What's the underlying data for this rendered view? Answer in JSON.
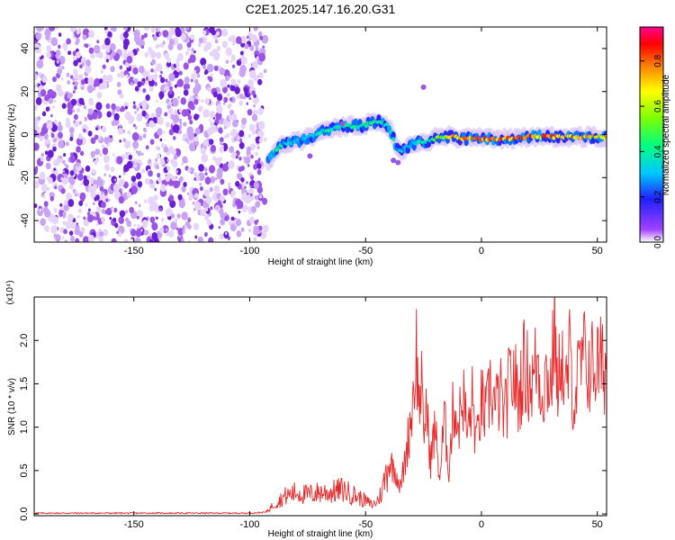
{
  "chart_data": [
    {
      "type": "heatmap",
      "title": "C2E1.2025.147.16.20.G31",
      "xlabel": "Height of straight line (km)",
      "ylabel": "Frequency (Hz)",
      "xlim": [
        -193,
        54
      ],
      "ylim": [
        -50,
        50
      ],
      "xticks": [
        -150,
        -100,
        -50,
        0,
        50
      ],
      "yticks": [
        -40,
        -20,
        0,
        20,
        40
      ],
      "colorbar": {
        "label": "Normalized spectral amplitude",
        "range": [
          0,
          0.95
        ],
        "ticks": [
          "0.0",
          "0.2",
          "0.4",
          "0.6",
          "0.8"
        ],
        "tick_values": [
          0,
          0.2,
          0.4,
          0.6,
          0.8
        ]
      },
      "noise_region": {
        "x_from": -193,
        "x_to": -93,
        "description_color": "#8a3de0"
      },
      "signal_track": {
        "x": [
          -92,
          -88,
          -84,
          -80,
          -76,
          -72,
          -68,
          -64,
          -60,
          -56,
          -52,
          -48,
          -44,
          -40,
          -36,
          -32,
          -28,
          -24,
          -20,
          -16,
          -12,
          -8,
          -4,
          0,
          5,
          10,
          15,
          20,
          25,
          30,
          35,
          40,
          45,
          50,
          54
        ],
        "y": [
          -12,
          -6,
          -4,
          -3,
          -2,
          0,
          2,
          3,
          4,
          4,
          4,
          5,
          6,
          4,
          -8,
          -6,
          -4,
          -3,
          -2,
          -1,
          -1,
          -2,
          -2,
          -2,
          -2,
          -2,
          -2,
          -1,
          -1,
          -1,
          -1,
          -1,
          -1,
          -1,
          -1
        ],
        "amplitude": [
          0.3,
          0.45,
          0.4,
          0.35,
          0.35,
          0.4,
          0.45,
          0.4,
          0.45,
          0.5,
          0.45,
          0.5,
          0.45,
          0.4,
          0.35,
          0.35,
          0.4,
          0.45,
          0.55,
          0.7,
          0.8,
          0.85,
          0.85,
          0.85,
          0.9,
          0.85,
          0.85,
          0.9,
          0.85,
          0.9,
          0.85,
          0.85,
          0.8,
          0.8,
          0.8
        ]
      }
    },
    {
      "type": "line",
      "xlabel": "Height of straight line (km)",
      "ylabel": "SNR (10 * v/v)",
      "yscale_note": "(x10⁴)",
      "xlim": [
        -193,
        54
      ],
      "ylim": [
        -0.02,
        2.5
      ],
      "xticks": [
        -150,
        -100,
        -50,
        0,
        50
      ],
      "yticks": [
        0.0,
        0.5,
        1.0,
        1.5,
        2.0
      ],
      "ytick_labels": [
        "0.0",
        "0.5",
        "1.0",
        "1.5",
        "2.0"
      ],
      "series": [
        {
          "name": "SNR",
          "color": "#e8292b",
          "x": [
            -193,
            -180,
            -160,
            -140,
            -120,
            -100,
            -93,
            -90,
            -85,
            -80,
            -75,
            -70,
            -65,
            -60,
            -55,
            -50,
            -47,
            -45,
            -43,
            -40,
            -37,
            -35,
            -33,
            -30,
            -28,
            -27,
            -26,
            -25,
            -24,
            -22,
            -20,
            -18,
            -16,
            -14,
            -12,
            -10,
            -8,
            -6,
            -4,
            -2,
            0,
            2,
            4,
            6,
            8,
            10,
            12,
            14,
            16,
            18,
            20,
            22,
            24,
            26,
            28,
            30,
            32,
            33,
            34,
            36,
            38,
            40,
            42,
            44,
            46,
            48,
            50,
            52,
            54
          ],
          "y": [
            0.01,
            0.01,
            0.01,
            0.01,
            0.01,
            0.01,
            0.02,
            0.1,
            0.2,
            0.25,
            0.22,
            0.25,
            0.25,
            0.28,
            0.22,
            0.15,
            0.1,
            0.15,
            0.25,
            0.6,
            0.5,
            0.3,
            0.6,
            1.2,
            1.9,
            1.2,
            1.6,
            0.8,
            1.3,
            0.6,
            1.0,
            0.4,
            1.1,
            0.5,
            1.3,
            1.0,
            1.4,
            0.9,
            1.3,
            0.8,
            1.3,
            1.1,
            1.5,
            1.2,
            1.4,
            1.1,
            1.5,
            1.6,
            1.3,
            1.7,
            1.6,
            1.5,
            1.8,
            1.4,
            1.6,
            1.5,
            2.3,
            1.0,
            2.1,
            1.3,
            1.8,
            1.3,
            1.6,
            1.8,
            1.7,
            1.7,
            1.72,
            1.7,
            1.72
          ]
        }
      ]
    }
  ]
}
